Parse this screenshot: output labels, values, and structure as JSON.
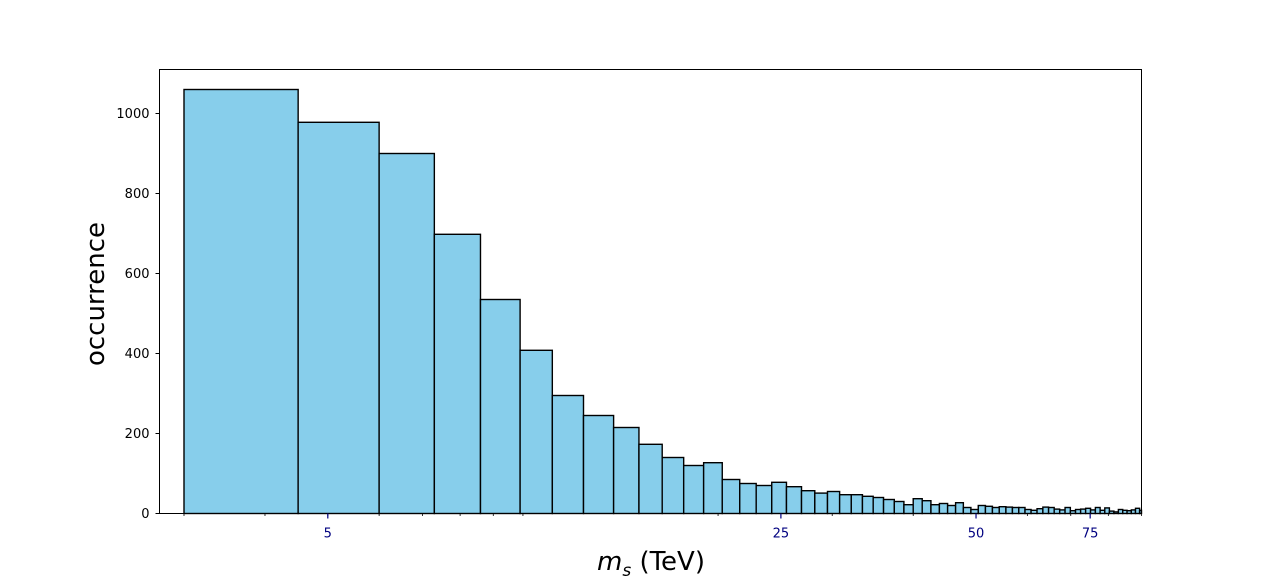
{
  "chart_data": {
    "type": "bar",
    "title": "",
    "xlabel_main": "m",
    "xlabel_sub": "s",
    "xlabel_unit": " (TeV)",
    "ylabel": "occurrence",
    "x_scale": "log",
    "xlim": [
      2.75,
      90
    ],
    "ylim": [
      0,
      1110
    ],
    "xticks": [
      5,
      25,
      50,
      75
    ],
    "xtick_labels": [
      "5",
      "25",
      "50",
      "75"
    ],
    "yticks": [
      0,
      200,
      400,
      600,
      800,
      1000
    ],
    "ytick_labels": [
      "0",
      "200",
      "400",
      "600",
      "800",
      "1000"
    ],
    "grid": false,
    "legend": "none",
    "bar_color": "#87ceeb",
    "edge_color": "#000000",
    "xtick_label_color": "#000080",
    "bins": [
      [
        3.0,
        4.5,
        1060
      ],
      [
        4.5,
        6.0,
        978
      ],
      [
        6.0,
        7.3,
        900
      ],
      [
        7.3,
        8.6,
        698
      ],
      [
        8.6,
        9.9,
        535
      ],
      [
        9.9,
        11.1,
        408
      ],
      [
        11.1,
        12.4,
        295
      ],
      [
        12.4,
        13.8,
        245
      ],
      [
        13.8,
        15.1,
        215
      ],
      [
        15.1,
        16.4,
        173
      ],
      [
        16.4,
        17.7,
        140
      ],
      [
        17.7,
        19.0,
        120
      ],
      [
        19.0,
        20.3,
        127
      ],
      [
        20.3,
        21.6,
        85
      ],
      [
        21.6,
        22.9,
        75
      ],
      [
        22.9,
        24.2,
        70
      ],
      [
        24.2,
        25.5,
        78
      ],
      [
        25.5,
        26.9,
        67
      ],
      [
        26.9,
        28.2,
        57
      ],
      [
        28.2,
        29.5,
        51
      ],
      [
        29.5,
        30.8,
        55
      ],
      [
        30.8,
        32.1,
        47
      ],
      [
        32.1,
        33.4,
        47
      ],
      [
        33.4,
        34.7,
        43
      ],
      [
        34.7,
        36.0,
        40
      ],
      [
        36.0,
        37.4,
        35
      ],
      [
        37.4,
        38.7,
        30
      ],
      [
        38.7,
        40.0,
        22
      ],
      [
        40.0,
        41.3,
        37
      ],
      [
        41.3,
        42.6,
        32
      ],
      [
        42.6,
        43.9,
        22
      ],
      [
        43.9,
        45.2,
        25
      ],
      [
        45.2,
        46.5,
        20
      ],
      [
        46.5,
        47.8,
        27
      ],
      [
        47.8,
        49.1,
        15
      ],
      [
        49.1,
        50.4,
        10
      ],
      [
        50.4,
        51.7,
        20
      ],
      [
        51.7,
        53.0,
        18
      ],
      [
        53.0,
        54.3,
        15
      ],
      [
        54.3,
        55.6,
        17
      ],
      [
        55.6,
        56.9,
        16
      ],
      [
        56.9,
        58.2,
        15
      ],
      [
        58.2,
        59.5,
        15
      ],
      [
        59.5,
        60.8,
        10
      ],
      [
        60.8,
        62.1,
        8
      ],
      [
        62.1,
        63.4,
        12
      ],
      [
        63.4,
        64.7,
        16
      ],
      [
        64.7,
        66.0,
        15
      ],
      [
        66.0,
        67.3,
        11
      ],
      [
        67.3,
        68.6,
        9
      ],
      [
        68.6,
        69.9,
        15
      ],
      [
        69.9,
        71.2,
        7
      ],
      [
        71.2,
        72.5,
        10
      ],
      [
        72.5,
        73.8,
        11
      ],
      [
        73.8,
        75.1,
        13
      ],
      [
        75.1,
        76.4,
        9
      ],
      [
        76.4,
        77.7,
        15
      ],
      [
        77.7,
        79.0,
        8
      ],
      [
        79.0,
        80.3,
        14
      ],
      [
        80.3,
        81.6,
        6
      ],
      [
        81.6,
        82.9,
        4
      ],
      [
        82.9,
        84.2,
        10
      ],
      [
        84.2,
        85.5,
        8
      ],
      [
        85.5,
        86.8,
        7
      ],
      [
        86.8,
        88.1,
        9
      ],
      [
        88.1,
        89.4,
        13
      ],
      [
        89.4,
        90.0,
        8
      ]
    ]
  }
}
